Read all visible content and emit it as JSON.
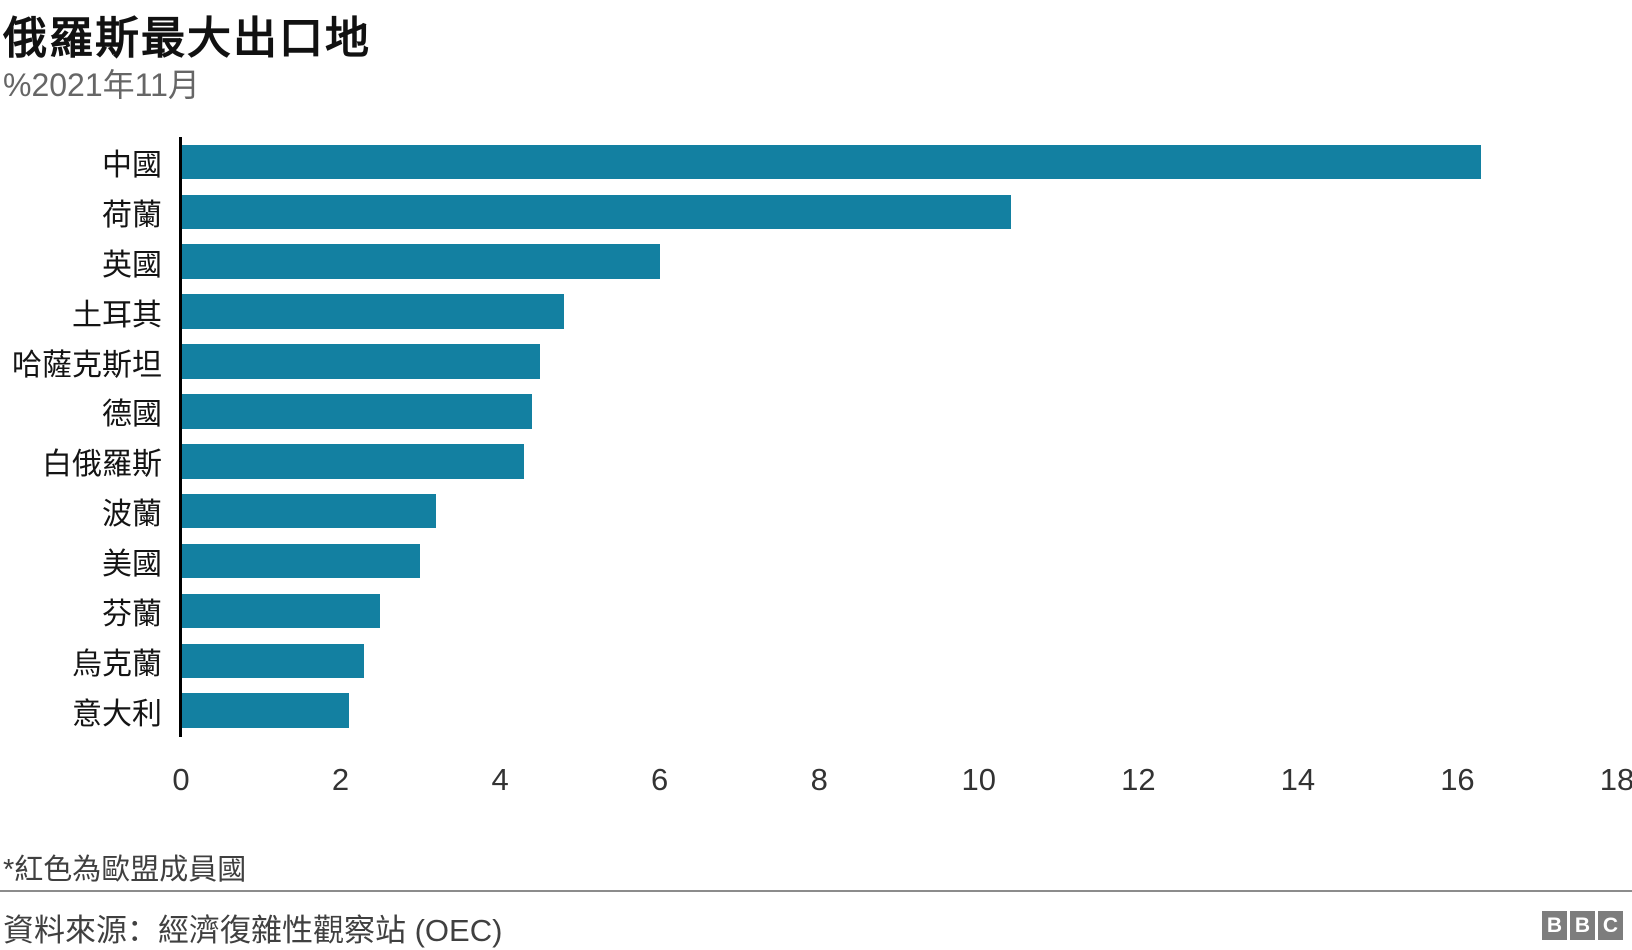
{
  "header": {
    "title": "俄羅斯最大出口地",
    "subtitle": "%2021年11月"
  },
  "chart_data": {
    "type": "bar",
    "orientation": "horizontal",
    "title": "俄羅斯最大出口地",
    "subtitle": "%2021年11月",
    "categories": [
      "中國",
      "荷蘭",
      "英國",
      "土耳其",
      "哈薩克斯坦",
      "德國",
      "白俄羅斯",
      "波蘭",
      "美國",
      "芬蘭",
      "烏克蘭",
      "意大利"
    ],
    "values": [
      16.3,
      10.4,
      6.0,
      4.8,
      4.5,
      4.4,
      4.3,
      3.2,
      3.0,
      2.5,
      2.3,
      2.1
    ],
    "xlim": [
      0,
      18
    ],
    "x_ticks": [
      0,
      2,
      4,
      6,
      8,
      10,
      12,
      14,
      16,
      18
    ],
    "xlabel": "",
    "ylabel": "",
    "grid": false,
    "legend": false,
    "bar_color": "#1380A1"
  },
  "colors": {
    "bar": "#1380A1",
    "title_text": "#111111",
    "subtitle_text": "#666666",
    "category_label": "#141414",
    "axis_tick_label": "#333333",
    "axis_line": "#000000",
    "footnote_text": "#404040",
    "source_text": "#404040",
    "divider": "#8c8c8c",
    "logo_background": "#7d7d7d",
    "logo_letter": "#ffffff"
  },
  "footer": {
    "footnote": "*紅色為歐盟成員國",
    "source": "資料來源：經濟復雜性觀察站 (OEC)",
    "logo_letters": [
      "B",
      "B",
      "C"
    ]
  }
}
